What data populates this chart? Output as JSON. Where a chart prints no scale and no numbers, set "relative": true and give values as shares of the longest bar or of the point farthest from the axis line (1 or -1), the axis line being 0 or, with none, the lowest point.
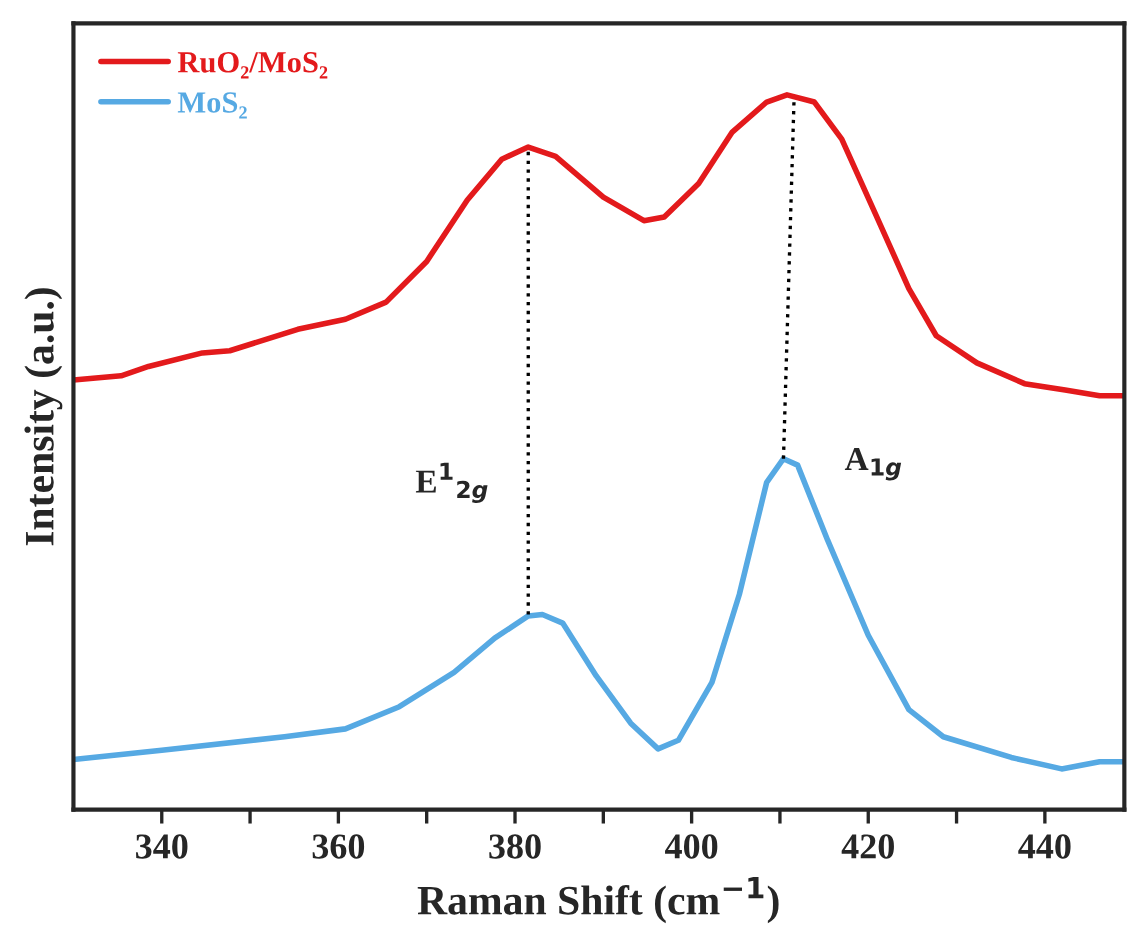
{
  "chart_data": {
    "type": "line",
    "relative": true,
    "xlabel": "Raman Shift (cm$^{−1}$)",
    "ylabel": "Intensity (a.u.)",
    "xlim": [
      330,
      449
    ],
    "xticks": [
      340,
      {
        "value": 350,
        "label": null
      },
      360,
      {
        "value": 370,
        "label": null
      },
      380,
      {
        "value": 390,
        "label": null
      },
      400,
      {
        "value": 410,
        "label": null
      },
      420,
      {
        "value": 430,
        "label": null
      },
      440
    ],
    "legend": "top left",
    "grid": false,
    "series": [
      {
        "name": "RuO₂/MoS₂",
        "color": "#e31a1c",
        "x": [
          330.0,
          335.4,
          338.5,
          344.6,
          347.7,
          355.4,
          360.8,
          365.4,
          370.0,
          374.6,
          378.5,
          381.5,
          384.6,
          390.0,
          394.6,
          396.9,
          400.8,
          404.6,
          408.5,
          410.8,
          413.9,
          417.0,
          420.8,
          424.6,
          427.7,
          432.3,
          437.7,
          442.3,
          446.2,
          448.8
        ],
        "values": [
          0.601,
          0.607,
          0.62,
          0.639,
          0.642,
          0.672,
          0.686,
          0.71,
          0.767,
          0.853,
          0.91,
          0.927,
          0.914,
          0.857,
          0.824,
          0.829,
          0.876,
          0.948,
          0.99,
          1.0,
          0.99,
          0.938,
          0.834,
          0.729,
          0.663,
          0.625,
          0.596,
          0.587,
          0.579,
          0.579
        ]
      },
      {
        "name": "MoS₂",
        "color": "#56a9e3",
        "x": [
          330.0,
          340.0,
          353.9,
          360.8,
          366.9,
          373.1,
          377.7,
          381.5,
          383.1,
          385.4,
          389.2,
          393.1,
          396.2,
          398.5,
          402.3,
          405.4,
          408.5,
          410.4,
          412.0,
          415.4,
          420.0,
          424.6,
          428.5,
          436.2,
          441.9,
          446.2,
          448.8
        ],
        "values": [
          0.07,
          0.083,
          0.102,
          0.113,
          0.144,
          0.192,
          0.24,
          0.271,
          0.273,
          0.261,
          0.187,
          0.121,
          0.085,
          0.097,
          0.178,
          0.301,
          0.458,
          0.491,
          0.482,
          0.377,
          0.244,
          0.14,
          0.102,
          0.073,
          0.057,
          0.067,
          0.067
        ]
      },
      {
        "color": "#000000",
        "line_style": "dotted",
        "x": [
          381.5,
          381.5
        ],
        "values": [
          0.273,
          0.927
        ]
      },
      {
        "color": "#000000",
        "line_style": "dotted",
        "x": [
          410.4,
          411.6
        ],
        "values": [
          0.491,
          0.995
        ]
      }
    ],
    "annotations": [
      "E$^{1}$$_{2g}$",
      "A$_{1g}$"
    ]
  }
}
